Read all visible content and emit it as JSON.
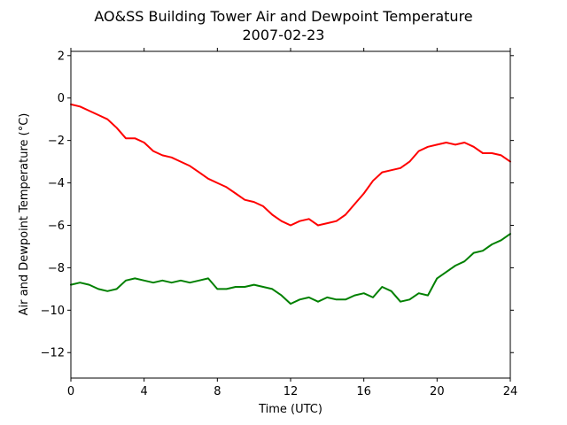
{
  "chart_data": {
    "type": "line",
    "title": "AO&SS Building Tower Air and Dewpoint Temperature",
    "subtitle": "2007-02-23",
    "xlabel": "Time (UTC)",
    "ylabel": "Air and Dewpoint Temperature (°C)",
    "xlim": [
      0,
      24
    ],
    "ylim": [
      -13.2,
      2.2
    ],
    "x_ticks": [
      0,
      4,
      8,
      12,
      16,
      20,
      24
    ],
    "y_ticks": [
      -12,
      -10,
      -8,
      -6,
      -4,
      -2,
      0,
      2
    ],
    "grid": false,
    "legend": "none",
    "series": [
      {
        "color": "#ff0000",
        "x": [
          0,
          0.5,
          1,
          1.5,
          2,
          2.5,
          3,
          3.5,
          4,
          4.5,
          5,
          5.5,
          6,
          6.5,
          7,
          7.5,
          8,
          8.5,
          9,
          9.5,
          10,
          10.5,
          11,
          11.5,
          12,
          12.5,
          13,
          13.5,
          14,
          14.5,
          15,
          15.5,
          16,
          16.5,
          17,
          17.5,
          18,
          18.5,
          19,
          19.5,
          20,
          20.5,
          21,
          21.5,
          22,
          22.5,
          23,
          23.5,
          24
        ],
        "values": [
          -0.3,
          -0.4,
          -0.6,
          -0.8,
          -1.0,
          -1.4,
          -1.9,
          -1.9,
          -2.1,
          -2.5,
          -2.7,
          -2.8,
          -3.0,
          -3.2,
          -3.5,
          -3.8,
          -4.0,
          -4.2,
          -4.5,
          -4.8,
          -4.9,
          -5.1,
          -5.5,
          -5.8,
          -6.0,
          -5.8,
          -5.7,
          -6.0,
          -5.9,
          -5.8,
          -5.5,
          -5.0,
          -4.5,
          -3.9,
          -3.5,
          -3.4,
          -3.3,
          -3.0,
          -2.5,
          -2.3,
          -2.2,
          -2.1,
          -2.2,
          -2.1,
          -2.3,
          -2.6,
          -2.6,
          -2.7,
          -3.0
        ]
      },
      {
        "color": "#008000",
        "x": [
          0,
          0.5,
          1,
          1.5,
          2,
          2.5,
          3,
          3.5,
          4,
          4.5,
          5,
          5.5,
          6,
          6.5,
          7,
          7.5,
          8,
          8.5,
          9,
          9.5,
          10,
          10.5,
          11,
          11.5,
          12,
          12.5,
          13,
          13.5,
          14,
          14.5,
          15,
          15.5,
          16,
          16.5,
          17,
          17.5,
          18,
          18.5,
          19,
          19.5,
          20,
          20.5,
          21,
          21.5,
          22,
          22.5,
          23,
          23.5,
          24
        ],
        "values": [
          -8.8,
          -8.7,
          -8.8,
          -9.0,
          -9.1,
          -9.0,
          -8.6,
          -8.5,
          -8.6,
          -8.7,
          -8.6,
          -8.7,
          -8.6,
          -8.7,
          -8.6,
          -8.5,
          -9.0,
          -9.0,
          -8.9,
          -8.9,
          -8.8,
          -8.9,
          -9.0,
          -9.3,
          -9.7,
          -9.5,
          -9.4,
          -9.6,
          -9.4,
          -9.5,
          -9.5,
          -9.3,
          -9.2,
          -9.4,
          -8.9,
          -9.1,
          -9.6,
          -9.5,
          -9.2,
          -9.3,
          -8.5,
          -8.2,
          -7.9,
          -7.7,
          -7.3,
          -7.2,
          -6.9,
          -6.7,
          -6.4
        ]
      }
    ]
  }
}
